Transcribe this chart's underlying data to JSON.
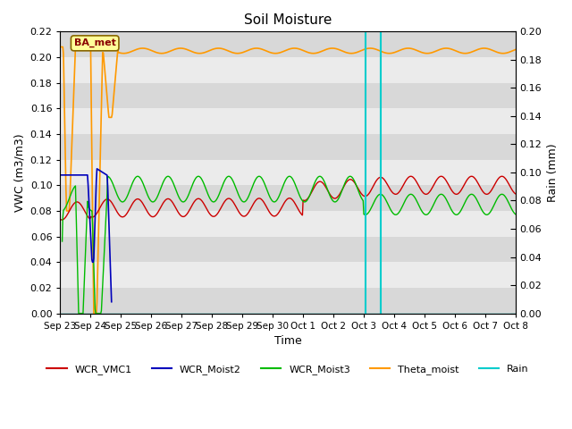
{
  "title": "Soil Moisture",
  "xlabel": "Time",
  "ylabel_left": "VWC (m3/m3)",
  "ylabel_right": "Rain (mm)",
  "ylim_left": [
    0.0,
    0.22
  ],
  "ylim_right": [
    0.0,
    0.2
  ],
  "yticks_left": [
    0.0,
    0.02,
    0.04,
    0.06,
    0.08,
    0.1,
    0.12,
    0.14,
    0.16,
    0.18,
    0.2,
    0.22
  ],
  "yticks_right": [
    0.0,
    0.02,
    0.04,
    0.06,
    0.08,
    0.1,
    0.12,
    0.14,
    0.16,
    0.18,
    0.2
  ],
  "annotation_text": "BA_met",
  "bg_color_light": "#ebebeb",
  "bg_color_dark": "#d8d8d8",
  "line_colors": {
    "WCR_VMC1": "#cc0000",
    "WCR_Moist2": "#0000bb",
    "WCR_Moist3": "#00bb00",
    "Theta_moist": "#ff9900",
    "Rain": "#00cccc"
  },
  "x_tick_labels": [
    "Sep 23",
    "Sep 24",
    "Sep 25",
    "Sep 26",
    "Sep 27",
    "Sep 28",
    "Sep 29",
    "Sep 30",
    "Oct 1",
    "Oct 2",
    "Oct 3",
    "Oct 4",
    "Oct 5",
    "Oct 6",
    "Oct 7",
    "Oct 8"
  ],
  "rain_vlines": [
    10.05,
    10.55
  ],
  "xlim": [
    0,
    15
  ]
}
